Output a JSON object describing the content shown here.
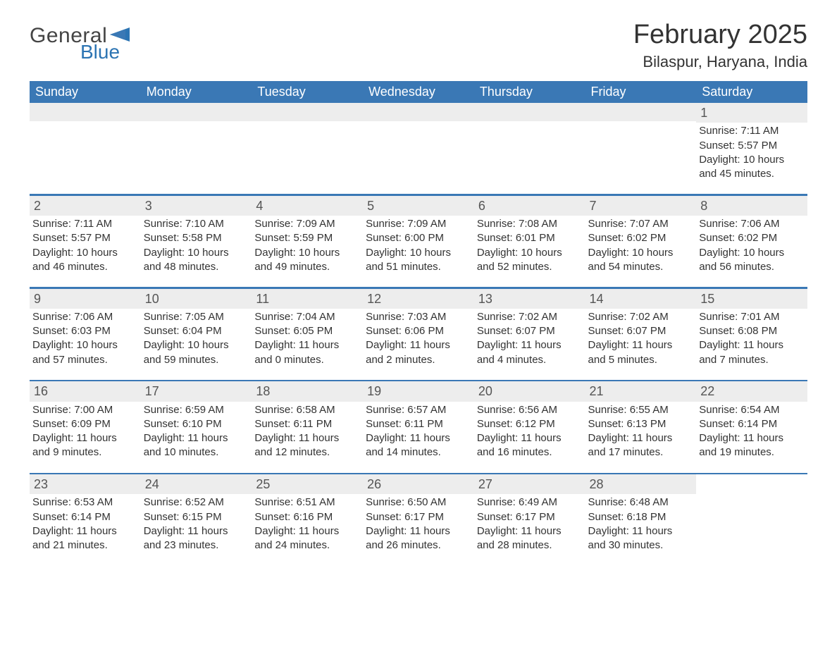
{
  "logo": {
    "text1": "General",
    "text2": "Blue",
    "flag_color": "#2c74b3"
  },
  "title": "February 2025",
  "location": "Bilaspur, Haryana, India",
  "colors": {
    "header_bg": "#3a78b5",
    "header_text": "#ffffff",
    "daynum_bg": "#ededed",
    "body_text": "#333333",
    "background": "#ffffff"
  },
  "typography": {
    "title_fontsize": 38,
    "location_fontsize": 22,
    "header_fontsize": 18,
    "daynum_fontsize": 18,
    "body_fontsize": 15
  },
  "weekdays": [
    "Sunday",
    "Monday",
    "Tuesday",
    "Wednesday",
    "Thursday",
    "Friday",
    "Saturday"
  ],
  "labels": {
    "sunrise": "Sunrise:",
    "sunset": "Sunset:",
    "daylight": "Daylight:"
  },
  "weeks": [
    [
      null,
      null,
      null,
      null,
      null,
      null,
      {
        "n": "1",
        "sunrise": "7:11 AM",
        "sunset": "5:57 PM",
        "dl1": "10 hours",
        "dl2": "and 45 minutes."
      }
    ],
    [
      {
        "n": "2",
        "sunrise": "7:11 AM",
        "sunset": "5:57 PM",
        "dl1": "10 hours",
        "dl2": "and 46 minutes."
      },
      {
        "n": "3",
        "sunrise": "7:10 AM",
        "sunset": "5:58 PM",
        "dl1": "10 hours",
        "dl2": "and 48 minutes."
      },
      {
        "n": "4",
        "sunrise": "7:09 AM",
        "sunset": "5:59 PM",
        "dl1": "10 hours",
        "dl2": "and 49 minutes."
      },
      {
        "n": "5",
        "sunrise": "7:09 AM",
        "sunset": "6:00 PM",
        "dl1": "10 hours",
        "dl2": "and 51 minutes."
      },
      {
        "n": "6",
        "sunrise": "7:08 AM",
        "sunset": "6:01 PM",
        "dl1": "10 hours",
        "dl2": "and 52 minutes."
      },
      {
        "n": "7",
        "sunrise": "7:07 AM",
        "sunset": "6:02 PM",
        "dl1": "10 hours",
        "dl2": "and 54 minutes."
      },
      {
        "n": "8",
        "sunrise": "7:06 AM",
        "sunset": "6:02 PM",
        "dl1": "10 hours",
        "dl2": "and 56 minutes."
      }
    ],
    [
      {
        "n": "9",
        "sunrise": "7:06 AM",
        "sunset": "6:03 PM",
        "dl1": "10 hours",
        "dl2": "and 57 minutes."
      },
      {
        "n": "10",
        "sunrise": "7:05 AM",
        "sunset": "6:04 PM",
        "dl1": "10 hours",
        "dl2": "and 59 minutes."
      },
      {
        "n": "11",
        "sunrise": "7:04 AM",
        "sunset": "6:05 PM",
        "dl1": "11 hours",
        "dl2": "and 0 minutes."
      },
      {
        "n": "12",
        "sunrise": "7:03 AM",
        "sunset": "6:06 PM",
        "dl1": "11 hours",
        "dl2": "and 2 minutes."
      },
      {
        "n": "13",
        "sunrise": "7:02 AM",
        "sunset": "6:07 PM",
        "dl1": "11 hours",
        "dl2": "and 4 minutes."
      },
      {
        "n": "14",
        "sunrise": "7:02 AM",
        "sunset": "6:07 PM",
        "dl1": "11 hours",
        "dl2": "and 5 minutes."
      },
      {
        "n": "15",
        "sunrise": "7:01 AM",
        "sunset": "6:08 PM",
        "dl1": "11 hours",
        "dl2": "and 7 minutes."
      }
    ],
    [
      {
        "n": "16",
        "sunrise": "7:00 AM",
        "sunset": "6:09 PM",
        "dl1": "11 hours",
        "dl2": "and 9 minutes."
      },
      {
        "n": "17",
        "sunrise": "6:59 AM",
        "sunset": "6:10 PM",
        "dl1": "11 hours",
        "dl2": "and 10 minutes."
      },
      {
        "n": "18",
        "sunrise": "6:58 AM",
        "sunset": "6:11 PM",
        "dl1": "11 hours",
        "dl2": "and 12 minutes."
      },
      {
        "n": "19",
        "sunrise": "6:57 AM",
        "sunset": "6:11 PM",
        "dl1": "11 hours",
        "dl2": "and 14 minutes."
      },
      {
        "n": "20",
        "sunrise": "6:56 AM",
        "sunset": "6:12 PM",
        "dl1": "11 hours",
        "dl2": "and 16 minutes."
      },
      {
        "n": "21",
        "sunrise": "6:55 AM",
        "sunset": "6:13 PM",
        "dl1": "11 hours",
        "dl2": "and 17 minutes."
      },
      {
        "n": "22",
        "sunrise": "6:54 AM",
        "sunset": "6:14 PM",
        "dl1": "11 hours",
        "dl2": "and 19 minutes."
      }
    ],
    [
      {
        "n": "23",
        "sunrise": "6:53 AM",
        "sunset": "6:14 PM",
        "dl1": "11 hours",
        "dl2": "and 21 minutes."
      },
      {
        "n": "24",
        "sunrise": "6:52 AM",
        "sunset": "6:15 PM",
        "dl1": "11 hours",
        "dl2": "and 23 minutes."
      },
      {
        "n": "25",
        "sunrise": "6:51 AM",
        "sunset": "6:16 PM",
        "dl1": "11 hours",
        "dl2": "and 24 minutes."
      },
      {
        "n": "26",
        "sunrise": "6:50 AM",
        "sunset": "6:17 PM",
        "dl1": "11 hours",
        "dl2": "and 26 minutes."
      },
      {
        "n": "27",
        "sunrise": "6:49 AM",
        "sunset": "6:17 PM",
        "dl1": "11 hours",
        "dl2": "and 28 minutes."
      },
      {
        "n": "28",
        "sunrise": "6:48 AM",
        "sunset": "6:18 PM",
        "dl1": "11 hours",
        "dl2": "and 30 minutes."
      },
      null
    ]
  ]
}
